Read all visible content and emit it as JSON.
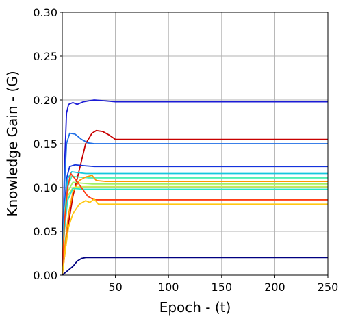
{
  "chart_data": {
    "type": "line",
    "xlabel": "Epoch - (t)",
    "ylabel": "Knowledge Gain - (G)",
    "xlim": [
      0,
      250
    ],
    "ylim": [
      0,
      0.3
    ],
    "grid": true,
    "x_ticks": [
      50,
      100,
      150,
      200,
      250
    ],
    "x_tick_labels": [
      "50",
      "100",
      "150",
      "200",
      "250"
    ],
    "y_ticks": [
      0,
      0.05,
      0.1,
      0.15,
      0.2,
      0.25,
      0.3
    ],
    "y_tick_labels": [
      "0.00",
      "0.05",
      "0.10",
      "0.15",
      "0.20",
      "0.25",
      "0.30"
    ],
    "series": [
      {
        "color": "#1a1ad6",
        "points": [
          [
            0,
            0.0
          ],
          [
            2,
            0.12
          ],
          [
            4,
            0.185
          ],
          [
            6,
            0.195
          ],
          [
            10,
            0.197
          ],
          [
            14,
            0.195
          ],
          [
            20,
            0.198
          ],
          [
            30,
            0.2
          ],
          [
            40,
            0.199
          ],
          [
            50,
            0.198
          ],
          [
            250,
            0.198
          ]
        ]
      },
      {
        "color": "#c80000",
        "points": [
          [
            0,
            0.0
          ],
          [
            3,
            0.03
          ],
          [
            6,
            0.06
          ],
          [
            10,
            0.09
          ],
          [
            14,
            0.11
          ],
          [
            18,
            0.13
          ],
          [
            22,
            0.15
          ],
          [
            28,
            0.162
          ],
          [
            32,
            0.165
          ],
          [
            38,
            0.164
          ],
          [
            44,
            0.16
          ],
          [
            50,
            0.155
          ],
          [
            250,
            0.155
          ]
        ]
      },
      {
        "color": "#1e6ee6",
        "points": [
          [
            0,
            0.0
          ],
          [
            2,
            0.1
          ],
          [
            4,
            0.15
          ],
          [
            7,
            0.162
          ],
          [
            12,
            0.161
          ],
          [
            18,
            0.155
          ],
          [
            24,
            0.151
          ],
          [
            30,
            0.15
          ],
          [
            250,
            0.15
          ]
        ]
      },
      {
        "color": "#1432dc",
        "points": [
          [
            0,
            0.0
          ],
          [
            2,
            0.07
          ],
          [
            4,
            0.11
          ],
          [
            7,
            0.124
          ],
          [
            12,
            0.126
          ],
          [
            20,
            0.125
          ],
          [
            30,
            0.124
          ],
          [
            250,
            0.124
          ]
        ]
      },
      {
        "color": "#14c8dc",
        "points": [
          [
            0,
            0.0
          ],
          [
            2,
            0.07
          ],
          [
            5,
            0.11
          ],
          [
            9,
            0.118
          ],
          [
            15,
            0.117
          ],
          [
            22,
            0.116
          ],
          [
            250,
            0.116
          ]
        ]
      },
      {
        "color": "#50f0b4",
        "points": [
          [
            0,
            0.0
          ],
          [
            2,
            0.07
          ],
          [
            5,
            0.1
          ],
          [
            9,
            0.113
          ],
          [
            15,
            0.112
          ],
          [
            25,
            0.111
          ],
          [
            250,
            0.111
          ]
        ]
      },
      {
        "color": "#ff9600",
        "points": [
          [
            0,
            0.0
          ],
          [
            3,
            0.04
          ],
          [
            6,
            0.07
          ],
          [
            10,
            0.095
          ],
          [
            16,
            0.108
          ],
          [
            22,
            0.112
          ],
          [
            28,
            0.114
          ],
          [
            32,
            0.108
          ],
          [
            40,
            0.107
          ],
          [
            250,
            0.107
          ]
        ]
      },
      {
        "color": "#a0f064",
        "points": [
          [
            0,
            0.0
          ],
          [
            2,
            0.06
          ],
          [
            5,
            0.095
          ],
          [
            10,
            0.106
          ],
          [
            18,
            0.105
          ],
          [
            28,
            0.104
          ],
          [
            250,
            0.104
          ]
        ]
      },
      {
        "color": "#c8f050",
        "points": [
          [
            0,
            0.0
          ],
          [
            2,
            0.05
          ],
          [
            5,
            0.09
          ],
          [
            10,
            0.1
          ],
          [
            18,
            0.101
          ],
          [
            30,
            0.101
          ],
          [
            250,
            0.101
          ]
        ]
      },
      {
        "color": "#28e6c8",
        "points": [
          [
            0,
            0.0
          ],
          [
            2,
            0.05
          ],
          [
            5,
            0.085
          ],
          [
            10,
            0.099
          ],
          [
            20,
            0.098
          ],
          [
            30,
            0.098
          ],
          [
            250,
            0.098
          ]
        ]
      },
      {
        "color": "#ff3c14",
        "points": [
          [
            0,
            0.0
          ],
          [
            2,
            0.06
          ],
          [
            5,
            0.1
          ],
          [
            8,
            0.116
          ],
          [
            12,
            0.11
          ],
          [
            18,
            0.1
          ],
          [
            24,
            0.09
          ],
          [
            30,
            0.086
          ],
          [
            250,
            0.086
          ]
        ]
      },
      {
        "color": "#ffc814",
        "points": [
          [
            0,
            0.0
          ],
          [
            3,
            0.03
          ],
          [
            6,
            0.055
          ],
          [
            10,
            0.07
          ],
          [
            16,
            0.081
          ],
          [
            22,
            0.085
          ],
          [
            26,
            0.083
          ],
          [
            30,
            0.087
          ],
          [
            34,
            0.081
          ],
          [
            250,
            0.081
          ]
        ]
      },
      {
        "color": "#000080",
        "points": [
          [
            0,
            0.0
          ],
          [
            5,
            0.005
          ],
          [
            10,
            0.01
          ],
          [
            14,
            0.016
          ],
          [
            18,
            0.019
          ],
          [
            22,
            0.02
          ],
          [
            30,
            0.02
          ],
          [
            250,
            0.02
          ]
        ]
      }
    ]
  }
}
